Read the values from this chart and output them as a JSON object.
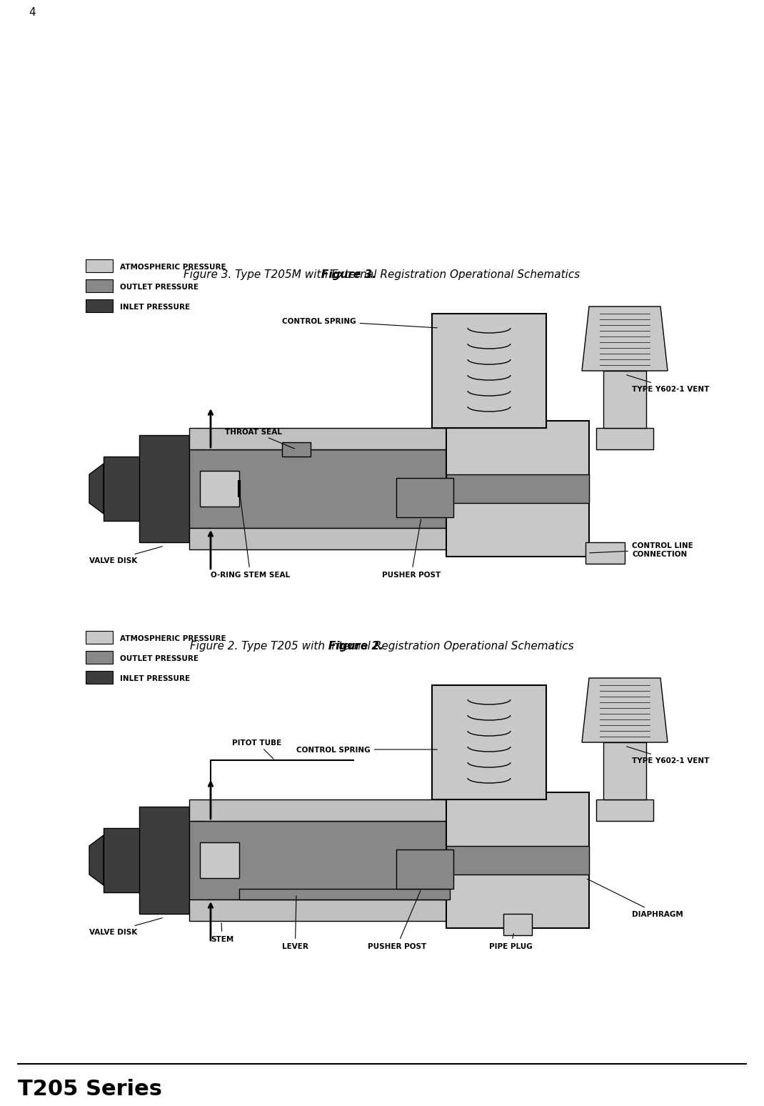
{
  "title": "T205 Series",
  "page_number": "4",
  "fig2_caption": "Figure 2. Type T205 with Internal Registration Operational Schematics",
  "fig3_caption": "Figure 3. Type T205M with External Registration Operational Schematics",
  "legend_items": [
    {
      "label": "INLET PRESSURE",
      "color": "#3d3d3d"
    },
    {
      "label": "OUTLET PRESSURE",
      "color": "#888888"
    },
    {
      "label": "ATMOSPHERIC PRESSURE",
      "color": "#c8c8c8"
    }
  ],
  "fig2_labels": [
    "VALVE DISK",
    "STEM",
    "LEVER",
    "PUSHER POST",
    "PIPE PLUG",
    "DIAPHRAGM",
    "TYPE Y602-1 VENT",
    "CONTROL SPRING",
    "PITOT TUBE"
  ],
  "fig3_labels": [
    "VALVE DISK",
    "O-RING STEM SEAL",
    "PUSHER POST",
    "CONTROL LINE\nCONNECTION",
    "TYPE Y602-1 VENT",
    "CONTROL SPRING",
    "THROAT SEAL"
  ],
  "bg_color": "#ffffff",
  "title_fontsize": 22,
  "caption_fontsize": 11,
  "label_fontsize": 7.5
}
